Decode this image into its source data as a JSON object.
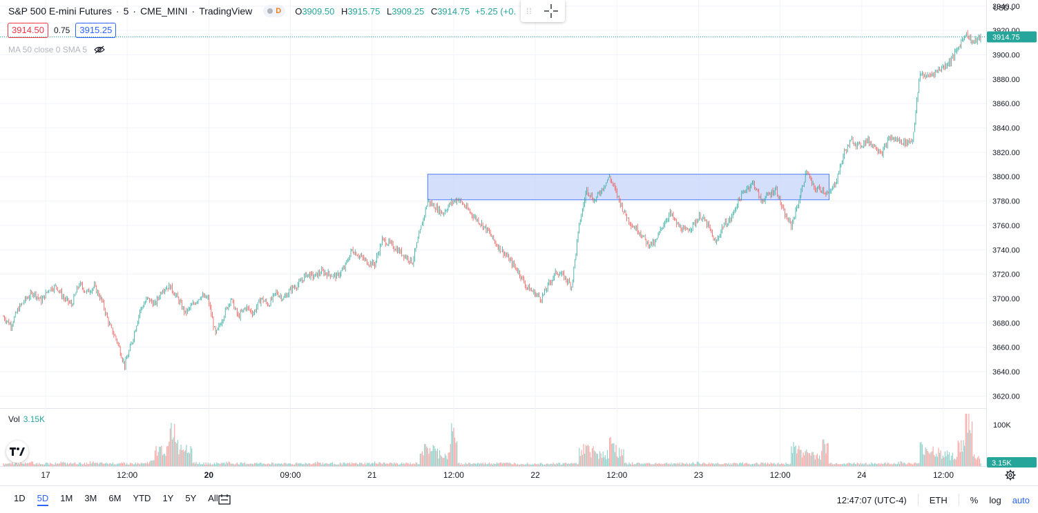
{
  "header": {
    "symbol": "S&P 500 E-mini Futures",
    "interval": "5",
    "exchange": "CME_MINI",
    "source": "TradingView",
    "session_badge": "D",
    "ohlc": {
      "o_label": "O",
      "o": "3909.50",
      "h_label": "H",
      "h": "3915.75",
      "l_label": "L",
      "l": "3909.25",
      "c_label": "C",
      "c": "3914.75",
      "change": "+5.25 (+0."
    },
    "bid": "3914.50",
    "spread": "0.75",
    "ask": "3915.25",
    "indicator": "MA 50 close 0 SMA 5",
    "currency": "USD"
  },
  "volume_pane": {
    "label": "Vol",
    "value": "3.15K",
    "axis_label": "100K",
    "last_tag": "3.15K"
  },
  "bottom_bar": {
    "ranges": [
      "1D",
      "5D",
      "1M",
      "3M",
      "6M",
      "YTD",
      "1Y",
      "5Y",
      "All"
    ],
    "active_range": "5D",
    "clock": "12:47:07 (UTC-4)",
    "session": "ETH",
    "percent": "%",
    "log": "log",
    "auto": "auto"
  },
  "colors": {
    "up": "#26a69a",
    "down": "#ef5350",
    "highlight": "#c5d5fa",
    "highlight_border": "#2962ff",
    "price_tag": "#26a69a"
  },
  "chart_data": {
    "type": "line",
    "title": "",
    "xlabel": "",
    "ylabel": "",
    "ylim": [
      3610,
      3945
    ],
    "y_ticks": [
      3620,
      3640,
      3660,
      3680,
      3700,
      3720,
      3740,
      3760,
      3780,
      3800,
      3820,
      3840,
      3860,
      3880,
      3900,
      3920,
      3940
    ],
    "x_ticks": [
      {
        "label": "17",
        "bold": false
      },
      {
        "label": "12:00",
        "bold": false
      },
      {
        "label": "20",
        "bold": true
      },
      {
        "label": "09:00",
        "bold": false
      },
      {
        "label": "21",
        "bold": false
      },
      {
        "label": "12:00",
        "bold": false
      },
      {
        "label": "22",
        "bold": false
      },
      {
        "label": "12:00",
        "bold": false
      },
      {
        "label": "23",
        "bold": false
      },
      {
        "label": "12:00",
        "bold": false
      },
      {
        "label": "24",
        "bold": false
      },
      {
        "label": "12:00",
        "bold": false
      }
    ],
    "last_price": "3914.75",
    "last_price_value": 3914.75,
    "zone": {
      "from": 3781,
      "to": 3802,
      "start_index": 56,
      "end_index": 109
    },
    "price_path": [
      3685,
      3678,
      3692,
      3700,
      3705,
      3698,
      3708,
      3710,
      3700,
      3695,
      3712,
      3705,
      3710,
      3698,
      3678,
      3665,
      3645,
      3665,
      3690,
      3700,
      3695,
      3708,
      3710,
      3700,
      3688,
      3695,
      3702,
      3700,
      3670,
      3685,
      3700,
      3685,
      3693,
      3688,
      3700,
      3695,
      3705,
      3700,
      3708,
      3712,
      3720,
      3718,
      3722,
      3720,
      3718,
      3725,
      3740,
      3735,
      3730,
      3728,
      3748,
      3745,
      3740,
      3735,
      3730,
      3755,
      3780,
      3775,
      3770,
      3778,
      3782,
      3775,
      3768,
      3762,
      3755,
      3745,
      3738,
      3730,
      3722,
      3710,
      3705,
      3700,
      3712,
      3722,
      3718,
      3710,
      3760,
      3790,
      3780,
      3790,
      3800,
      3785,
      3770,
      3760,
      3755,
      3745,
      3745,
      3760,
      3770,
      3760,
      3755,
      3760,
      3768,
      3760,
      3745,
      3760,
      3765,
      3780,
      3790,
      3795,
      3780,
      3785,
      3790,
      3770,
      3760,
      3780,
      3805,
      3790,
      3790,
      3785,
      3798,
      3820,
      3830,
      3825,
      3830,
      3825,
      3820,
      3832,
      3830,
      3828,
      3830,
      3885,
      3882,
      3886,
      3890,
      3895,
      3905,
      3918,
      3910,
      3914.75
    ],
    "volume_path": [
      3,
      3,
      3,
      4,
      3,
      3,
      3,
      4,
      3,
      3,
      3,
      4,
      3,
      3,
      3,
      4,
      3,
      3,
      3,
      5,
      18,
      20,
      40,
      22,
      25,
      4,
      3,
      3,
      3,
      4,
      3,
      3,
      3,
      3,
      3,
      3,
      3,
      3,
      3,
      3,
      3,
      4,
      3,
      3,
      3,
      3,
      3,
      3,
      3,
      4,
      3,
      3,
      3,
      3,
      3,
      18,
      20,
      15,
      12,
      35,
      3,
      3,
      3,
      3,
      3,
      4,
      3,
      3,
      3,
      3,
      3,
      3,
      3,
      3,
      3,
      3,
      20,
      18,
      15,
      14,
      25,
      15,
      3,
      3,
      3,
      3,
      3,
      3,
      3,
      3,
      3,
      4,
      3,
      3,
      3,
      3,
      3,
      3,
      3,
      3,
      4,
      3,
      3,
      3,
      20,
      18,
      14,
      12,
      22,
      3,
      3,
      3,
      3,
      3,
      3,
      3,
      3,
      3,
      4,
      3,
      3,
      20,
      18,
      15,
      14,
      12,
      22,
      50,
      10,
      3
    ]
  }
}
